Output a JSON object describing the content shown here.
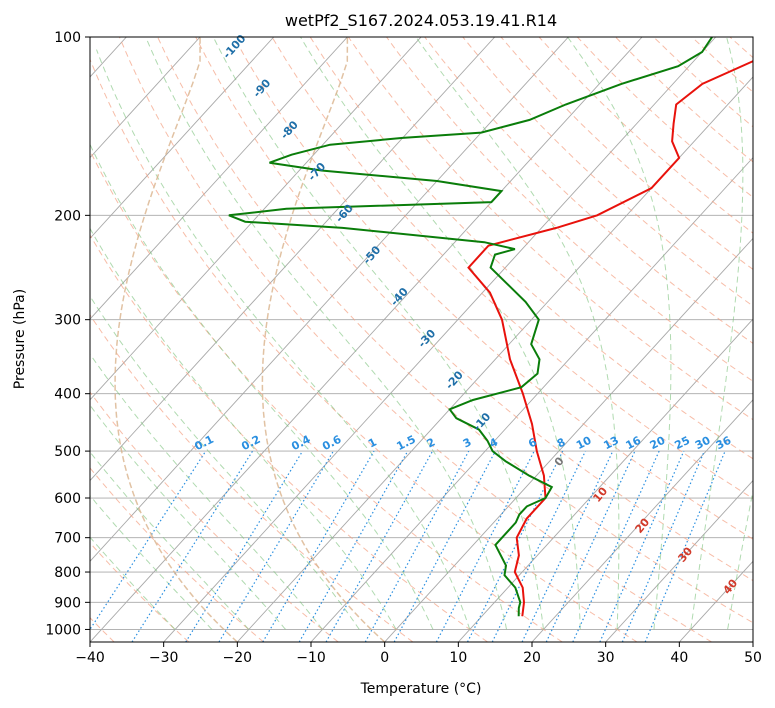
{
  "chart_data": {
    "type": "line",
    "title": "wetPf2_S167.2024.053.19.41.R14",
    "xlabel": "Temperature (°C)",
    "ylabel": "Pressure (hPa)",
    "xlim": [
      -40,
      50
    ],
    "ylim": [
      1050,
      100
    ],
    "y_scale": "log",
    "skew": "skew-T",
    "grid": true,
    "x_ticks": [
      -40,
      -30,
      -20,
      -10,
      0,
      10,
      20,
      30,
      40,
      50
    ],
    "x_tick_labels": [
      "−40",
      "−30",
      "−20",
      "−10",
      "0",
      "10",
      "20",
      "30",
      "40",
      "50"
    ],
    "y_ticks": [
      100,
      200,
      300,
      400,
      500,
      600,
      700,
      800,
      900,
      1000
    ],
    "y_tick_labels": [
      "100",
      "200",
      "300",
      "400",
      "500",
      "600",
      "700",
      "800",
      "900",
      "1000"
    ],
    "series": [
      {
        "color": "#e8120c",
        "points": [
          {
            "p": 950,
            "t": 15.5
          },
          {
            "p": 900,
            "t": 14.0
          },
          {
            "p": 850,
            "t": 12.0
          },
          {
            "p": 800,
            "t": 9.0
          },
          {
            "p": 750,
            "t": 7.5
          },
          {
            "p": 700,
            "t": 5.0
          },
          {
            "p": 650,
            "t": 4.0
          },
          {
            "p": 600,
            "t": 4.0
          },
          {
            "p": 550,
            "t": 1.0
          },
          {
            "p": 500,
            "t": -3.0
          },
          {
            "p": 450,
            "t": -7.0
          },
          {
            "p": 400,
            "t": -12.0
          },
          {
            "p": 350,
            "t": -18.0
          },
          {
            "p": 300,
            "t": -24.0
          },
          {
            "p": 270,
            "t": -29.0
          },
          {
            "p": 245,
            "t": -35.0
          },
          {
            "p": 225,
            "t": -35.0
          },
          {
            "p": 210,
            "t": -28.0
          },
          {
            "p": 200,
            "t": -24.0
          },
          {
            "p": 180,
            "t": -20.0
          },
          {
            "p": 160,
            "t": -20.0
          },
          {
            "p": 150,
            "t": -23.0
          },
          {
            "p": 140,
            "t": -25.0
          },
          {
            "p": 130,
            "t": -27.0
          },
          {
            "p": 120,
            "t": -26.0
          },
          {
            "p": 110,
            "t": -22.0
          },
          {
            "p": 100,
            "t": -18.5
          }
        ]
      },
      {
        "color": "#0a7d0a",
        "points": [
          {
            "p": 950,
            "t": 15.0
          },
          {
            "p": 920,
            "t": 14.0
          },
          {
            "p": 900,
            "t": 13.5
          },
          {
            "p": 850,
            "t": 11.0
          },
          {
            "p": 810,
            "t": 8.0
          },
          {
            "p": 780,
            "t": 7.0
          },
          {
            "p": 720,
            "t": 3.0
          },
          {
            "p": 700,
            "t": 3.0
          },
          {
            "p": 660,
            "t": 3.0
          },
          {
            "p": 640,
            "t": 2.5
          },
          {
            "p": 620,
            "t": 2.5
          },
          {
            "p": 600,
            "t": 4.0
          },
          {
            "p": 575,
            "t": 3.5
          },
          {
            "p": 550,
            "t": -1.0
          },
          {
            "p": 520,
            "t": -6.0
          },
          {
            "p": 500,
            "t": -9.0
          },
          {
            "p": 480,
            "t": -11.0
          },
          {
            "p": 460,
            "t": -13.5
          },
          {
            "p": 440,
            "t": -18.0
          },
          {
            "p": 425,
            "t": -20.0
          },
          {
            "p": 410,
            "t": -18.0
          },
          {
            "p": 390,
            "t": -13.0
          },
          {
            "p": 370,
            "t": -12.5
          },
          {
            "p": 350,
            "t": -14.0
          },
          {
            "p": 330,
            "t": -17.0
          },
          {
            "p": 300,
            "t": -19.0
          },
          {
            "p": 280,
            "t": -23.0
          },
          {
            "p": 260,
            "t": -28.0
          },
          {
            "p": 245,
            "t": -32.0
          },
          {
            "p": 233,
            "t": -33.0
          },
          {
            "p": 228,
            "t": -31.0
          },
          {
            "p": 222,
            "t": -36.0
          },
          {
            "p": 210,
            "t": -57.0
          },
          {
            "p": 205,
            "t": -71.0
          },
          {
            "p": 200,
            "t": -74.0
          },
          {
            "p": 195,
            "t": -67.0
          },
          {
            "p": 190,
            "t": -40.0
          },
          {
            "p": 182,
            "t": -40.0
          },
          {
            "p": 175,
            "t": -50.0
          },
          {
            "p": 168,
            "t": -67.0
          },
          {
            "p": 163,
            "t": -75.0
          },
          {
            "p": 158,
            "t": -73.0
          },
          {
            "p": 152,
            "t": -69.0
          },
          {
            "p": 148,
            "t": -60.0
          },
          {
            "p": 145,
            "t": -50.0
          },
          {
            "p": 138,
            "t": -45.0
          },
          {
            "p": 130,
            "t": -42.0
          },
          {
            "p": 120,
            "t": -37.0
          },
          {
            "p": 112,
            "t": -31.5
          },
          {
            "p": 106,
            "t": -30.0
          },
          {
            "p": 100,
            "t": -30.5
          }
        ]
      }
    ],
    "dry_adiabats": [
      {
        "t": -100
      },
      {
        "t": -90
      },
      {
        "t": -80
      },
      {
        "t": -70
      },
      {
        "t": -60
      },
      {
        "t": -50
      },
      {
        "t": -40
      },
      {
        "t": -30
      },
      {
        "t": -20
      },
      {
        "t": -10
      }
    ],
    "dry_adiabat_labels": [
      "-100",
      "-90",
      "-80",
      "-70",
      "-60",
      "-50",
      "-40",
      "-30",
      "-20",
      "-10"
    ],
    "moist_adiabats": [
      {
        "t": 0
      },
      {
        "t": 10
      },
      {
        "t": 20
      },
      {
        "t": 30
      },
      {
        "t": 40
      }
    ],
    "moist_adiabat_labels": [
      "0",
      "10",
      "20",
      "30",
      "40"
    ],
    "mixing_ratios": [
      0.1,
      0.2,
      0.4,
      0.6,
      1,
      1.5,
      2,
      3,
      4,
      6,
      8,
      10,
      13,
      16,
      20,
      25,
      30,
      36
    ],
    "mixing_ratio_labels": [
      "0.1",
      "0.2",
      "0.4",
      "0.6",
      "1",
      "1.5",
      "2",
      "3",
      "4",
      "6",
      "8",
      "10",
      "13",
      "16",
      "20",
      "25",
      "30",
      "36"
    ]
  }
}
